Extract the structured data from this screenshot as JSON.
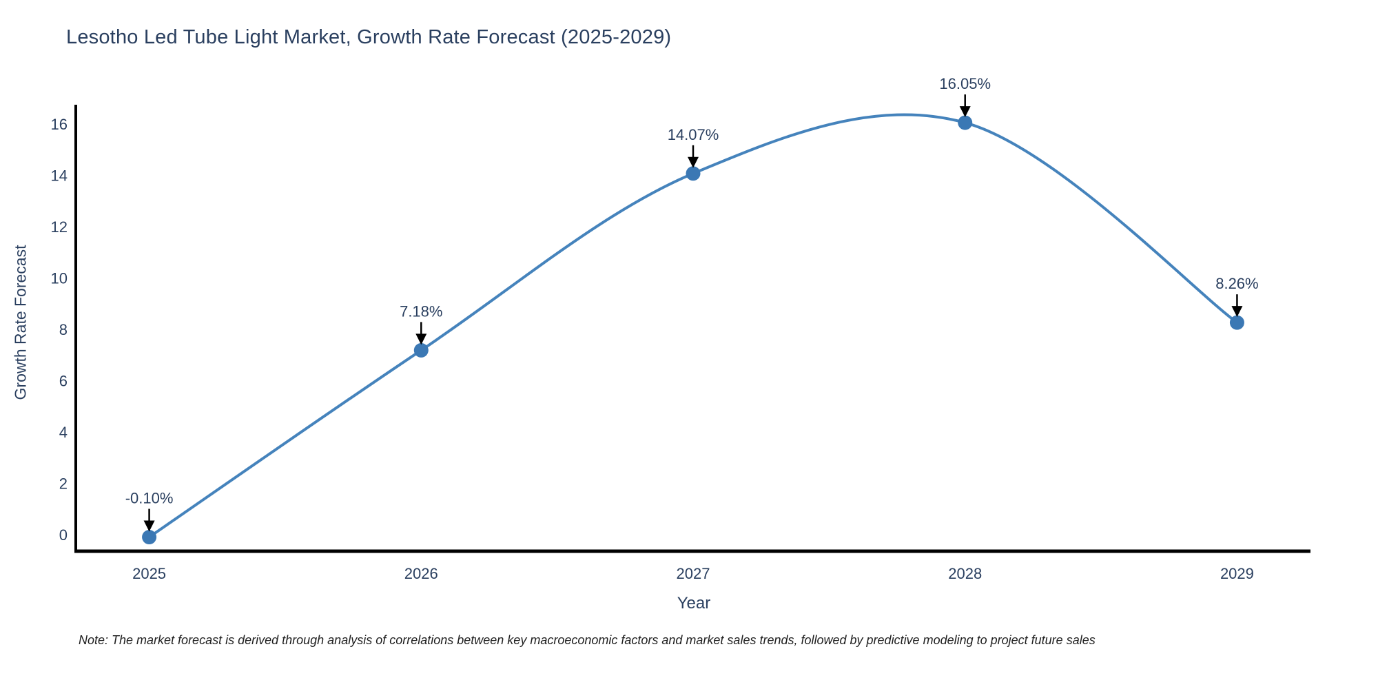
{
  "title": "Lesotho Led Tube Light Market, Growth Rate Forecast (2025-2029)",
  "note": "Note: The market forecast is derived through analysis of correlations between key macroeconomic factors and market sales trends, followed by predictive modeling to project future sales",
  "chart_data": {
    "type": "line",
    "title": "Lesotho Led Tube Light Market, Growth Rate Forecast (2025-2029)",
    "xlabel": "Year",
    "ylabel": "Growth Rate Forecast",
    "x": [
      2025,
      2026,
      2027,
      2028,
      2029
    ],
    "values": [
      -0.1,
      7.18,
      14.07,
      16.05,
      8.26
    ],
    "point_labels": [
      "-0.10%",
      "7.18%",
      "14.07%",
      "16.05%",
      "8.26%"
    ],
    "yticks": [
      0,
      2,
      4,
      6,
      8,
      10,
      12,
      14,
      16
    ],
    "xlim": [
      2024.73,
      2029.27
    ],
    "ylim": [
      -0.65,
      16.75
    ],
    "grid": false,
    "legend": false,
    "smooth": true,
    "line_color": "#4583bc",
    "marker_color": "#3b78b4",
    "axis_color": "#000000",
    "tick_color": "#2a3f5f",
    "annotation_text_color": "#2a3f5f",
    "annotation_arrow_color": "#000000"
  }
}
